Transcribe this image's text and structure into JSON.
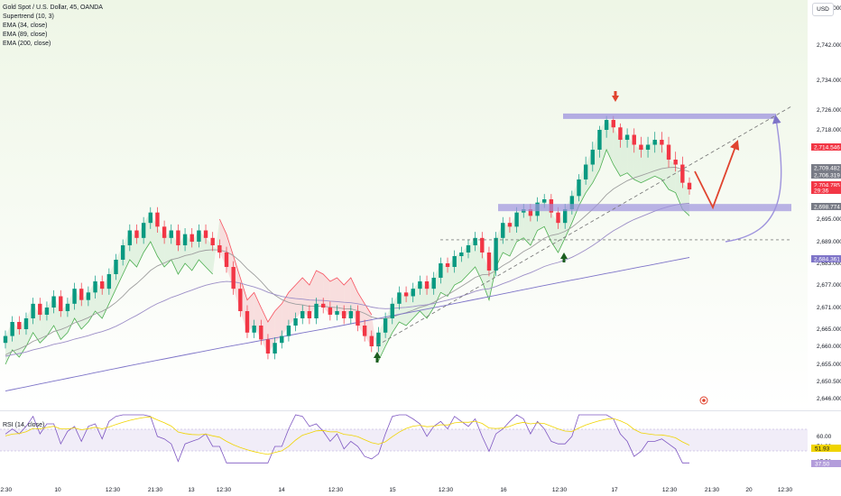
{
  "legend": {
    "symbol": "Gold Spot / U.S. Dollar, 45, OANDA",
    "indicators": [
      "Supertrend (10, 3)",
      "EMA (34, close)",
      "EMA (89, close)",
      "EMA (200, close)"
    ]
  },
  "currency_button": "USD",
  "rsi_legend": "RSI (14, close)",
  "colors": {
    "up": "#089981",
    "down": "#f23645",
    "supertrend_up": "#4caf50",
    "supertrend_down": "#f7525f",
    "ema34": "#9e9e9e",
    "ema89": "#9c8ec7",
    "ema200": "#7e74c8",
    "zone": "#9e93dd",
    "projection": "#e0442f",
    "rsi": "#7e57c2",
    "rsi_ma": "#f0d400",
    "bg_top": "#f2f8ec"
  },
  "chart_data": {
    "type": "candlestick",
    "symbol": "Gold Spot / U.S. Dollar",
    "interval": "45",
    "y_axis_ticks": [
      "2,750.000",
      "2,742.000",
      "2,734.000",
      "2,726.000",
      "2,718.000",
      "2,710.000",
      "2,695.000",
      "2,689.000",
      "2,683.000",
      "2,677.000",
      "2,671.000",
      "2,665.000",
      "2,660.000",
      "2,655.000",
      "2,650.500",
      "2,646.000"
    ],
    "x_axis_ticks": [
      "12:30",
      "10",
      "12:30",
      "21:30",
      "13",
      "12:30",
      "14",
      "12:30",
      "15",
      "12:30",
      "16",
      "12:30",
      "17",
      "12:30",
      "21:30",
      "20",
      "12:30"
    ],
    "price_tags": [
      {
        "label": "2,714.546",
        "style": "red"
      },
      {
        "label": "2,709.482",
        "style": "gray"
      },
      {
        "label": "2,706.319",
        "style": "gray"
      },
      {
        "label": "2,704.785",
        "style": "red"
      },
      {
        "label": "29:36",
        "style": "red"
      },
      {
        "label": "2,698.774",
        "style": "gray"
      },
      {
        "label": "2,684.361",
        "style": "purple"
      }
    ],
    "zones": [
      {
        "name": "resistance",
        "price": 2723.5
      },
      {
        "name": "support",
        "price": 2698.5
      },
      {
        "name": "dashed-level",
        "price": 2689.5
      }
    ],
    "candles_close": [
      2663,
      2667,
      2665,
      2668,
      2672,
      2669,
      2671,
      2674,
      2670,
      2672,
      2676,
      2673,
      2675,
      2678,
      2676,
      2680,
      2684,
      2688,
      2692,
      2690,
      2694,
      2697,
      2693,
      2690,
      2692,
      2688,
      2691,
      2689,
      2692,
      2690,
      2688,
      2686,
      2682,
      2676,
      2670,
      2664,
      2666,
      2662,
      2658,
      2661,
      2663,
      2666,
      2668,
      2670,
      2668,
      2672,
      2671,
      2669,
      2670,
      2668,
      2670,
      2666,
      2663,
      2660,
      2664,
      2668,
      2672,
      2675,
      2674,
      2676,
      2678,
      2676,
      2679,
      2683,
      2682,
      2685,
      2686,
      2688,
      2690,
      2686,
      2681,
      2690,
      2694,
      2693,
      2697,
      2698,
      2696,
      2700,
      2701,
      2697,
      2694,
      2698,
      2702,
      2707,
      2711,
      2714,
      2718,
      2722,
      2719,
      2716,
      2717,
      2715,
      2714,
      2715,
      2716,
      2715,
      2712,
      2711,
      2706,
      2704
    ],
    "rsi_ticks": [
      "60.00",
      "51.93",
      "37.50"
    ]
  }
}
